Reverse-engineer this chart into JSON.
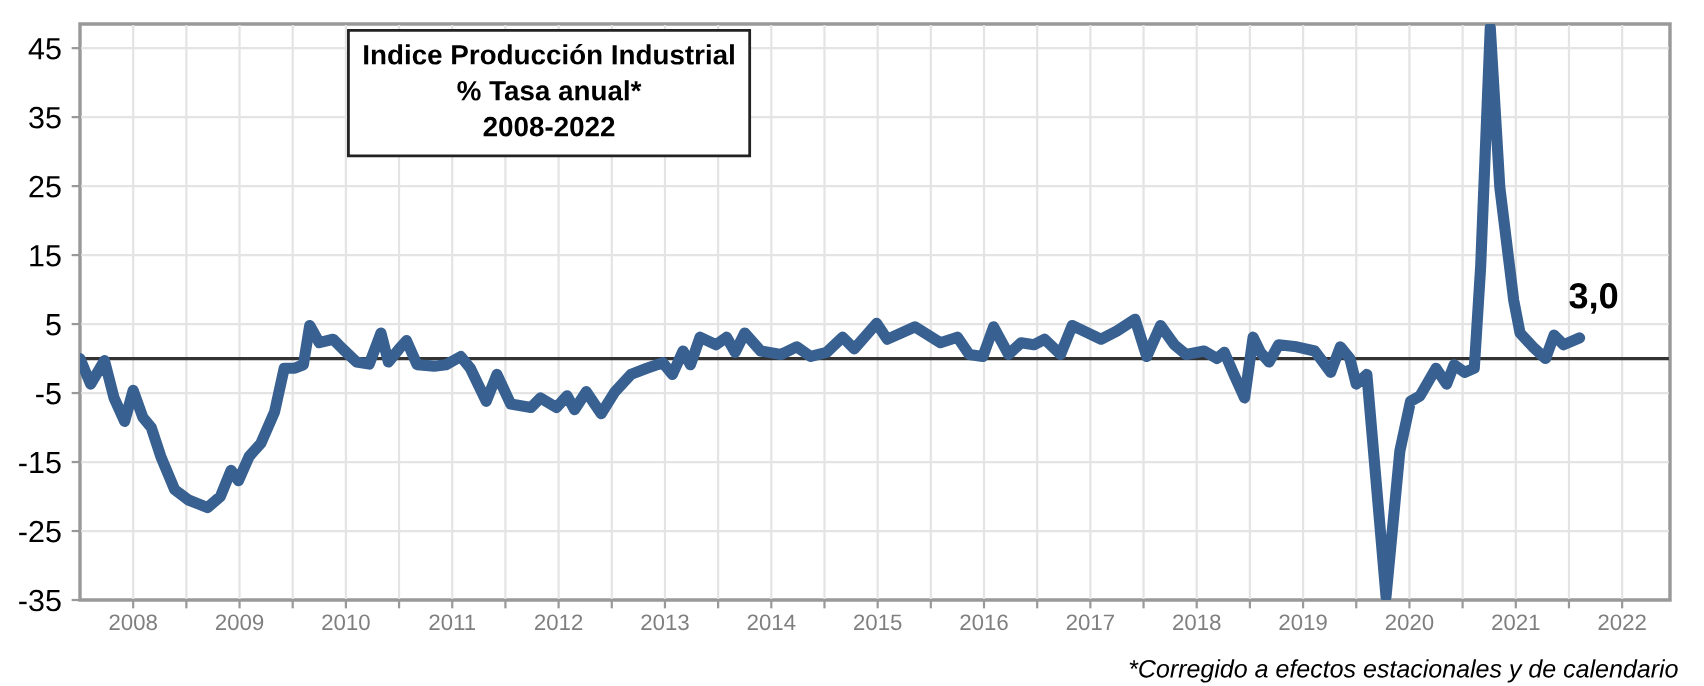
{
  "chart_data": {
    "type": "line",
    "title": "Indice Producción Industrial\n% Tasa anual*\n2008-2022",
    "annotations": [
      {
        "text": "3,0",
        "x": 2022.1,
        "y": 3.0
      },
      "*Corregido a efectos estacionales y de calendario"
    ],
    "x": [
      2008.0,
      2008.1,
      2008.23,
      2008.32,
      2008.42,
      2008.5,
      2008.59,
      2008.67,
      2008.76,
      2008.89,
      2009.02,
      2009.2,
      2009.32,
      2009.42,
      2009.49,
      2009.59,
      2009.7,
      2009.83,
      2009.92,
      2010.02,
      2010.1,
      2010.16,
      2010.25,
      2010.38,
      2010.47,
      2010.6,
      2010.72,
      2010.83,
      2010.9,
      2011.0,
      2011.07,
      2011.17,
      2011.33,
      2011.44,
      2011.58,
      2011.67,
      2011.82,
      2011.92,
      2012.05,
      2012.24,
      2012.33,
      2012.48,
      2012.58,
      2012.65,
      2012.76,
      2012.9,
      2013.03,
      2013.18,
      2013.33,
      2013.48,
      2013.57,
      2013.67,
      2013.74,
      2013.83,
      2013.98,
      2014.08,
      2014.16,
      2014.25,
      2014.4,
      2014.59,
      2014.74,
      2014.87,
      2015.02,
      2015.17,
      2015.28,
      2015.49,
      2015.59,
      2015.85,
      2016.09,
      2016.25,
      2016.36,
      2016.49,
      2016.59,
      2016.73,
      2016.85,
      2016.97,
      2017.07,
      2017.22,
      2017.33,
      2017.6,
      2017.75,
      2017.92,
      2018.03,
      2018.16,
      2018.29,
      2018.4,
      2018.57,
      2018.69,
      2018.76,
      2018.85,
      2018.95,
      2019.03,
      2019.1,
      2019.18,
      2019.27,
      2019.44,
      2019.61,
      2019.76,
      2019.85,
      2019.94,
      2020.0,
      2020.1,
      2020.28,
      2020.41,
      2020.51,
      2020.6,
      2020.75,
      2020.85,
      2020.92,
      2021.02,
      2021.11,
      2021.17,
      2021.26,
      2021.35,
      2021.48,
      2021.54,
      2021.66,
      2021.78,
      2021.86,
      2021.95,
      2022.1
    ],
    "series": [
      {
        "color": "#386192",
        "values": [
          0,
          -3.7,
          -0.3,
          -5.7,
          -9.1,
          -4.6,
          -8.5,
          -10,
          -14.2,
          -19,
          -20.5,
          -21.6,
          -20,
          -16.2,
          -17.7,
          -14.2,
          -12.3,
          -7.7,
          -1.4,
          -1.4,
          -0.9,
          4.8,
          2.3,
          2.8,
          1.4,
          -0.5,
          -0.8,
          3.7,
          -0.5,
          1.4,
          2.6,
          -0.9,
          -1.1,
          -0.9,
          0.3,
          -1.4,
          -6.2,
          -2.3,
          -6.6,
          -7.1,
          -5.7,
          -7.1,
          -5.4,
          -7.4,
          -4.8,
          -8.0,
          -4.8,
          -2.3,
          -1.4,
          -0.6,
          -2.3,
          1.1,
          -0.9,
          3.1,
          2.0,
          3.1,
          0.9,
          3.7,
          1.1,
          0.6,
          1.7,
          0.3,
          0.9,
          3.1,
          1.4,
          5.1,
          2.8,
          4.6,
          2.3,
          3.1,
          0.6,
          0.3,
          4.6,
          0.6,
          2.3,
          2.0,
          2.8,
          0.6,
          4.8,
          2.8,
          4.0,
          5.7,
          0.3,
          4.8,
          2.0,
          0.6,
          1.1,
          0,
          0.9,
          -2.3,
          -5.7,
          3.1,
          0.9,
          -0.5,
          2.0,
          1.7,
          1.1,
          -2.0,
          1.7,
          0,
          -3.7,
          -2.3,
          -34.5,
          -13.4,
          -6.2,
          -5.4,
          -1.4,
          -3.7,
          -0.9,
          -2.0,
          -1.4,
          13.4,
          48,
          24.8,
          8.5,
          3.7,
          1.7,
          0,
          3.4,
          2.0,
          3.0
        ]
      }
    ],
    "xlim": [
      2008.0,
      2022.95
    ],
    "ylim": [
      -35,
      48.5
    ],
    "xticks": [
      {
        "value": 2008.5,
        "label": "2008"
      },
      {
        "value": 2009.5,
        "label": "2009"
      },
      {
        "value": 2010.5,
        "label": "2010"
      },
      {
        "value": 2011.5,
        "label": "2011"
      },
      {
        "value": 2012.5,
        "label": "2012"
      },
      {
        "value": 2013.5,
        "label": "2013"
      },
      {
        "value": 2014.5,
        "label": "2014"
      },
      {
        "value": 2015.5,
        "label": "2015"
      },
      {
        "value": 2016.5,
        "label": "2016"
      },
      {
        "value": 2017.5,
        "label": "2017"
      },
      {
        "value": 2018.5,
        "label": "2018"
      },
      {
        "value": 2019.5,
        "label": "2019"
      },
      {
        "value": 2020.5,
        "label": "2020"
      },
      {
        "value": 2021.5,
        "label": "2021"
      },
      {
        "value": 2022.5,
        "label": "2022"
      },
      {
        "value": 2009,
        "label": null
      },
      {
        "value": 2010,
        "label": null
      },
      {
        "value": 2011,
        "label": null
      },
      {
        "value": 2012,
        "label": null
      },
      {
        "value": 2013,
        "label": null
      },
      {
        "value": 2014,
        "label": null
      },
      {
        "value": 2015,
        "label": null
      },
      {
        "value": 2016,
        "label": null
      },
      {
        "value": 2017,
        "label": null
      },
      {
        "value": 2018,
        "label": null
      },
      {
        "value": 2019,
        "label": null
      },
      {
        "value": 2020,
        "label": null
      },
      {
        "value": 2021,
        "label": null
      },
      {
        "value": 2022,
        "label": null
      }
    ],
    "yticks": [
      45,
      35,
      25,
      15,
      5,
      -5,
      -15,
      -25,
      -35
    ],
    "ref_lines": [
      {
        "axis": "y",
        "value": 0,
        "color": "#333333"
      }
    ],
    "grid": true,
    "line_style": "solid",
    "marker": "none"
  }
}
